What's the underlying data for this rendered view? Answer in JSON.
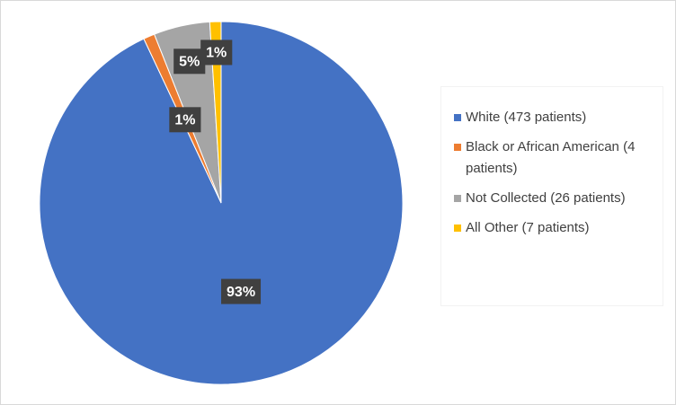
{
  "chart_data": {
    "type": "pie",
    "categories": [
      "White (473 patients)",
      "Black or African American (4 patients)",
      "Not Collected (26 patients)",
      "All Other (7 patients)"
    ],
    "values": [
      93,
      1,
      5,
      1
    ],
    "value_labels": [
      "93%",
      "1%",
      "5%",
      "1%"
    ],
    "colors": [
      "#4472c4",
      "#ed7d31",
      "#a5a5a5",
      "#ffc000"
    ],
    "legend": "right"
  }
}
